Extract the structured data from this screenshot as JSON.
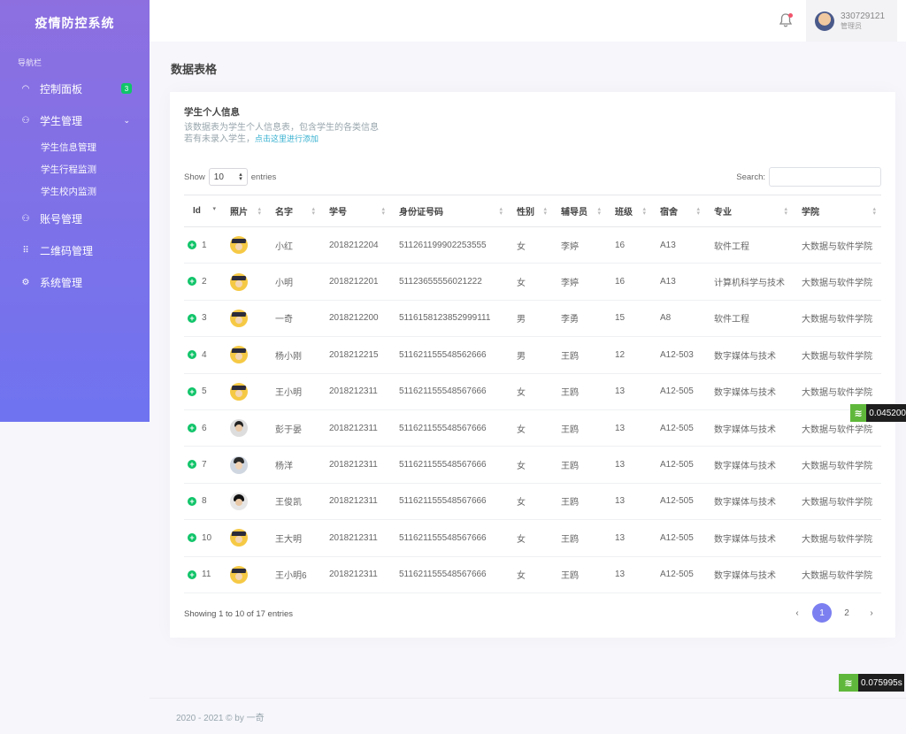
{
  "sidebar": {
    "brand": "疫情防控系统",
    "nav_title": "导航栏",
    "items": [
      {
        "label": "控制面板",
        "icon": "dashboard-icon",
        "badge": "3"
      },
      {
        "label": "学生管理",
        "icon": "users-icon"
      },
      {
        "label": "账号管理",
        "icon": "account-icon"
      },
      {
        "label": "二维码管理",
        "icon": "grid-icon"
      },
      {
        "label": "系统管理",
        "icon": "gear-icon"
      }
    ],
    "sub_items": [
      "学生信息管理",
      "学生行程监测",
      "学生校内监测"
    ]
  },
  "topbar": {
    "user_name": "330729121",
    "user_role": "管理员"
  },
  "page_title": "数据表格",
  "card": {
    "title": "学生个人信息",
    "desc_line1": "该数据表为学生个人信息表，包含学生的各类信息",
    "desc_line2": "若有未录入学生，",
    "desc_link": "点击这里进行添加"
  },
  "table_controls": {
    "show_label": "Show",
    "entries_value": "10",
    "entries_label": "entries",
    "search_label": "Search:"
  },
  "table": {
    "headers": [
      "Id",
      "照片",
      "名字",
      "学号",
      "身份证号码",
      "性别",
      "辅导员",
      "班级",
      "宿舍",
      "专业",
      "学院"
    ],
    "rows": [
      {
        "id": "1",
        "photo": "grad",
        "name": "小红",
        "sno": "2018212204",
        "idcard": "511261199902253555",
        "gender": "女",
        "counselor": "李婷",
        "class": "16",
        "dorm": "A13",
        "major": "软件工程",
        "college": "大数据与软件学院"
      },
      {
        "id": "2",
        "photo": "grad",
        "name": "小明",
        "sno": "2018212201",
        "idcard": "51123655556021222",
        "gender": "女",
        "counselor": "李婷",
        "class": "16",
        "dorm": "A13",
        "major": "计算机科学与技术",
        "college": "大数据与软件学院"
      },
      {
        "id": "3",
        "photo": "grad",
        "name": "一奇",
        "sno": "2018212200",
        "idcard": "5116158123852999111",
        "gender": "男",
        "counselor": "李勇",
        "class": "15",
        "dorm": "A8",
        "major": "软件工程",
        "college": "大数据与软件学院"
      },
      {
        "id": "4",
        "photo": "grad",
        "name": "杨小刚",
        "sno": "2018212215",
        "idcard": "511621155548562666",
        "gender": "男",
        "counselor": "王鸥",
        "class": "12",
        "dorm": "A12-503",
        "major": "数字媒体与技术",
        "college": "大数据与软件学院"
      },
      {
        "id": "5",
        "photo": "grad",
        "name": "王小明",
        "sno": "2018212311",
        "idcard": "511621155548567666",
        "gender": "女",
        "counselor": "王鸥",
        "class": "13",
        "dorm": "A12-505",
        "major": "数字媒体与技术",
        "college": "大数据与软件学院"
      },
      {
        "id": "6",
        "photo": "man",
        "name": "彭于晏",
        "sno": "2018212311",
        "idcard": "511621155548567666",
        "gender": "女",
        "counselor": "王鸥",
        "class": "13",
        "dorm": "A12-505",
        "major": "数字媒体与技术",
        "college": "大数据与软件学院"
      },
      {
        "id": "7",
        "photo": "man2",
        "name": "杨洋",
        "sno": "2018212311",
        "idcard": "511621155548567666",
        "gender": "女",
        "counselor": "王鸥",
        "class": "13",
        "dorm": "A12-505",
        "major": "数字媒体与技术",
        "college": "大数据与软件学院"
      },
      {
        "id": "8",
        "photo": "man3",
        "name": "王俊凯",
        "sno": "2018212311",
        "idcard": "511621155548567666",
        "gender": "女",
        "counselor": "王鸥",
        "class": "13",
        "dorm": "A12-505",
        "major": "数字媒体与技术",
        "college": "大数据与软件学院"
      },
      {
        "id": "10",
        "photo": "grad",
        "name": "王大明",
        "sno": "2018212311",
        "idcard": "511621155548567666",
        "gender": "女",
        "counselor": "王鸥",
        "class": "13",
        "dorm": "A12-505",
        "major": "数字媒体与技术",
        "college": "大数据与软件学院"
      },
      {
        "id": "11",
        "photo": "grad",
        "name": "王小明6",
        "sno": "2018212311",
        "idcard": "511621155548567666",
        "gender": "女",
        "counselor": "王鸥",
        "class": "13",
        "dorm": "A12-505",
        "major": "数字媒体与技术",
        "college": "大数据与软件学院"
      }
    ]
  },
  "footer_info": {
    "showing": "Showing 1 to 10 of 17 entries",
    "pages": [
      "1",
      "2"
    ],
    "prev": "‹",
    "next": "›",
    "copyright": "2020 - 2021 © by 一奇"
  },
  "perf_badges": [
    "0.045200",
    "0.075995s"
  ],
  "colors": {
    "sidebar_top": "#8d6fe0",
    "sidebar_bottom": "#6f73f0",
    "accent_green": "#10c469",
    "active_page": "#7b7ff0"
  }
}
